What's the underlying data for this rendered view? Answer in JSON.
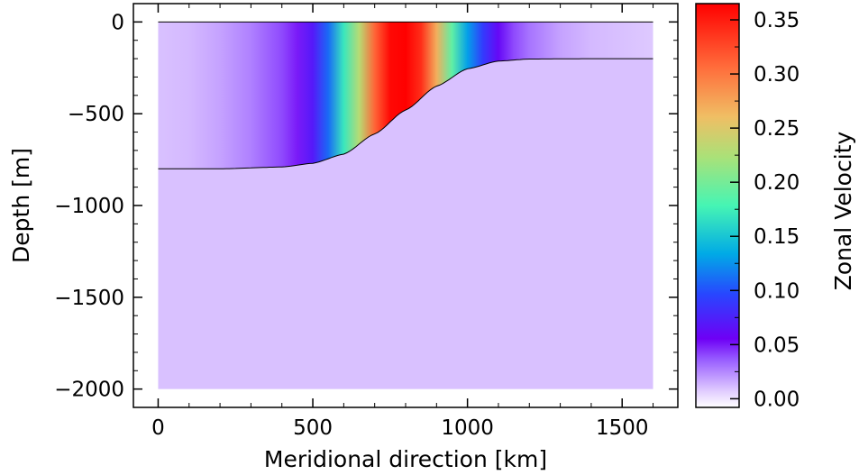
{
  "chart_data": {
    "type": "heatmap",
    "xlabel": "Meridional direction [km]",
    "ylabel": "Depth [m]",
    "colorbar_label": "Zonal Velocity",
    "xlim": [
      -80,
      1680
    ],
    "ylim": [
      -2100,
      100
    ],
    "x_domain": [
      0,
      1600
    ],
    "y_domain": [
      -2000,
      0
    ],
    "x_ticks": [
      0,
      500,
      1000,
      1500
    ],
    "x_tick_labels": [
      "0",
      "500",
      "1000",
      "1500"
    ],
    "y_ticks": [
      0,
      -500,
      -1000,
      -1500,
      -2000
    ],
    "y_tick_labels": [
      "0",
      "−500",
      "−1000",
      "−1500",
      "−2000"
    ],
    "colorbar_ticks": [
      0.0,
      0.05,
      0.1,
      0.15,
      0.2,
      0.25,
      0.3,
      0.35
    ],
    "colorbar_tick_labels": [
      "0.00",
      "0.05",
      "0.10",
      "0.15",
      "0.20",
      "0.25",
      "0.30",
      "0.35"
    ],
    "colorbar_range": [
      -0.008,
      0.365
    ],
    "colormap": "rainbow (white at low end)",
    "layer_interface": {
      "description_points_x": [
        0,
        200,
        400,
        500,
        600,
        700,
        800,
        900,
        1000,
        1100,
        1200,
        1400,
        1600
      ],
      "depth": [
        -800,
        -800,
        -790,
        -770,
        -720,
        -610,
        -480,
        -350,
        -255,
        -213,
        -202,
        -200,
        -200
      ]
    },
    "velocity_profile_upper_layer": {
      "x": [
        0,
        100,
        200,
        300,
        400,
        450,
        500,
        550,
        600,
        650,
        700,
        750,
        800,
        850,
        900,
        950,
        1000,
        1050,
        1100,
        1150,
        1200,
        1300,
        1400,
        1500,
        1600
      ],
      "values": [
        0.01,
        0.012,
        0.018,
        0.027,
        0.04,
        0.05,
        0.07,
        0.11,
        0.17,
        0.23,
        0.31,
        0.36,
        0.365,
        0.34,
        0.27,
        0.19,
        0.13,
        0.09,
        0.06,
        0.04,
        0.03,
        0.018,
        0.012,
        0.01,
        0.008
      ]
    },
    "lower_layer_value": 0.01
  }
}
